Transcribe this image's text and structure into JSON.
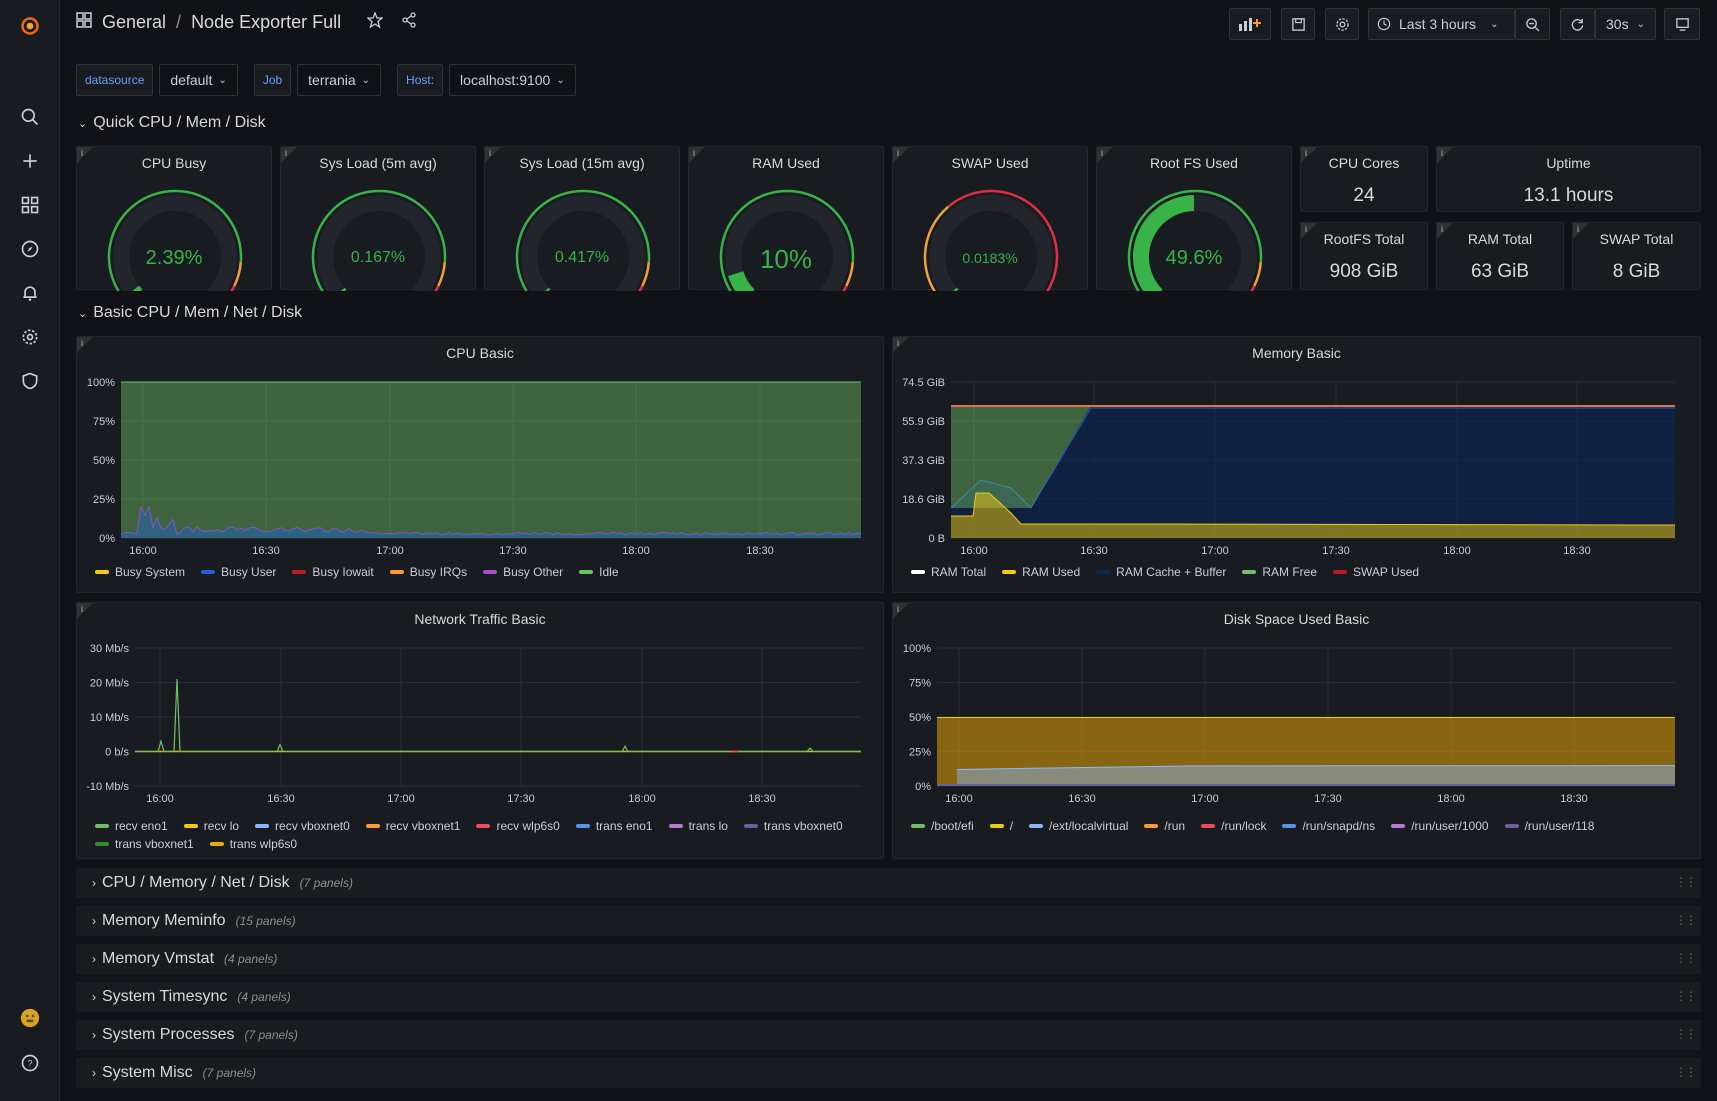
{
  "breadcrumb": {
    "folder": "General",
    "separator": "/",
    "dashboard": "Node Exporter Full"
  },
  "toolbar": {
    "time_range": "Last 3 hours",
    "refresh_interval": "30s"
  },
  "variables": [
    {
      "label": "datasource",
      "value": "default"
    },
    {
      "label": "Job",
      "value": "terrania"
    },
    {
      "label": "Host:",
      "value": "localhost:9100"
    }
  ],
  "rows": {
    "quick": "Quick CPU / Mem / Disk",
    "basic": "Basic CPU / Mem / Net / Disk"
  },
  "gauges": [
    {
      "title": "CPU Busy",
      "value": "2.39%",
      "fraction": 0.0239
    },
    {
      "title": "Sys Load (5m avg)",
      "value": "0.167%",
      "fraction": 0.00167
    },
    {
      "title": "Sys Load (15m avg)",
      "value": "0.417%",
      "fraction": 0.00417
    },
    {
      "title": "RAM Used",
      "value": "10%",
      "fraction": 0.1
    },
    {
      "title": "SWAP Used",
      "value": "0.0183%",
      "fraction": 0.000183
    },
    {
      "title": "Root FS Used",
      "value": "49.6%",
      "fraction": 0.496
    }
  ],
  "stats": [
    {
      "title": "CPU Cores",
      "value": "24"
    },
    {
      "title": "Uptime",
      "value": "13.1 hours"
    },
    {
      "title": "RootFS Total",
      "value": "908 GiB"
    },
    {
      "title": "RAM Total",
      "value": "63 GiB"
    },
    {
      "title": "SWAP Total",
      "value": "8 GiB"
    }
  ],
  "x_ticks": [
    "16:00",
    "16:30",
    "17:00",
    "17:30",
    "18:00",
    "18:30"
  ],
  "charts": {
    "cpu": {
      "title": "CPU Basic",
      "y_ticks": [
        "100%",
        "75%",
        "50%",
        "25%",
        "0%"
      ],
      "legend": [
        {
          "name": "Busy System",
          "color": "#f2cc0c"
        },
        {
          "name": "Busy User",
          "color": "#1f60c4"
        },
        {
          "name": "Busy Iowait",
          "color": "#c4162a"
        },
        {
          "name": "Busy IRQs",
          "color": "#ff9830"
        },
        {
          "name": "Busy Other",
          "color": "#a352cc"
        },
        {
          "name": "Idle",
          "color": "#73bf69"
        }
      ]
    },
    "mem": {
      "title": "Memory Basic",
      "y_ticks": [
        "74.5 GiB",
        "55.9 GiB",
        "37.3 GiB",
        "18.6 GiB",
        "0 B"
      ],
      "legend": [
        {
          "name": "RAM Total",
          "color": "#ffffff"
        },
        {
          "name": "RAM Used",
          "color": "#f2cc0c"
        },
        {
          "name": "RAM Cache + Buffer",
          "color": "#0a2558"
        },
        {
          "name": "RAM Free",
          "color": "#73bf69"
        },
        {
          "name": "SWAP Used",
          "color": "#c4162a"
        }
      ]
    },
    "net": {
      "title": "Network Traffic Basic",
      "y_ticks": [
        "30 Mb/s",
        "20 Mb/s",
        "10 Mb/s",
        "0 b/s",
        "-10 Mb/s"
      ],
      "legend": [
        {
          "name": "recv eno1",
          "color": "#73bf69"
        },
        {
          "name": "recv lo",
          "color": "#f2cc0c"
        },
        {
          "name": "recv vboxnet0",
          "color": "#8ab8ff"
        },
        {
          "name": "recv vboxnet1",
          "color": "#ff9830"
        },
        {
          "name": "recv wlp6s0",
          "color": "#f2495c"
        },
        {
          "name": "trans eno1",
          "color": "#5794f2"
        },
        {
          "name": "trans lo",
          "color": "#b877d9"
        },
        {
          "name": "trans vboxnet0",
          "color": "#705da0"
        },
        {
          "name": "trans vboxnet1",
          "color": "#37872d"
        },
        {
          "name": "trans wlp6s0",
          "color": "#e0b400"
        }
      ]
    },
    "disk": {
      "title": "Disk Space Used Basic",
      "y_ticks": [
        "100%",
        "75%",
        "50%",
        "25%",
        "0%"
      ],
      "legend": [
        {
          "name": "/boot/efi",
          "color": "#73bf69"
        },
        {
          "name": "/",
          "color": "#f2cc0c"
        },
        {
          "name": "/ext/localvirtual",
          "color": "#8ab8ff"
        },
        {
          "name": "/run",
          "color": "#ff9830"
        },
        {
          "name": "/run/lock",
          "color": "#f2495c"
        },
        {
          "name": "/run/snapd/ns",
          "color": "#5794f2"
        },
        {
          "name": "/run/user/1000",
          "color": "#b877d9"
        },
        {
          "name": "/run/user/118",
          "color": "#705da0"
        }
      ]
    }
  },
  "collapsed_rows": [
    {
      "title": "CPU / Memory / Net / Disk",
      "count": "(7 panels)"
    },
    {
      "title": "Memory Meminfo",
      "count": "(15 panels)"
    },
    {
      "title": "Memory Vmstat",
      "count": "(4 panels)"
    },
    {
      "title": "System Timesync",
      "count": "(4 panels)"
    },
    {
      "title": "System Processes",
      "count": "(7 panels)"
    },
    {
      "title": "System Misc",
      "count": "(7 panels)"
    }
  ],
  "colors": {
    "accent": "#6e9fff",
    "green": "#37b34a",
    "bg": "#111217",
    "panel": "#181b1f"
  }
}
